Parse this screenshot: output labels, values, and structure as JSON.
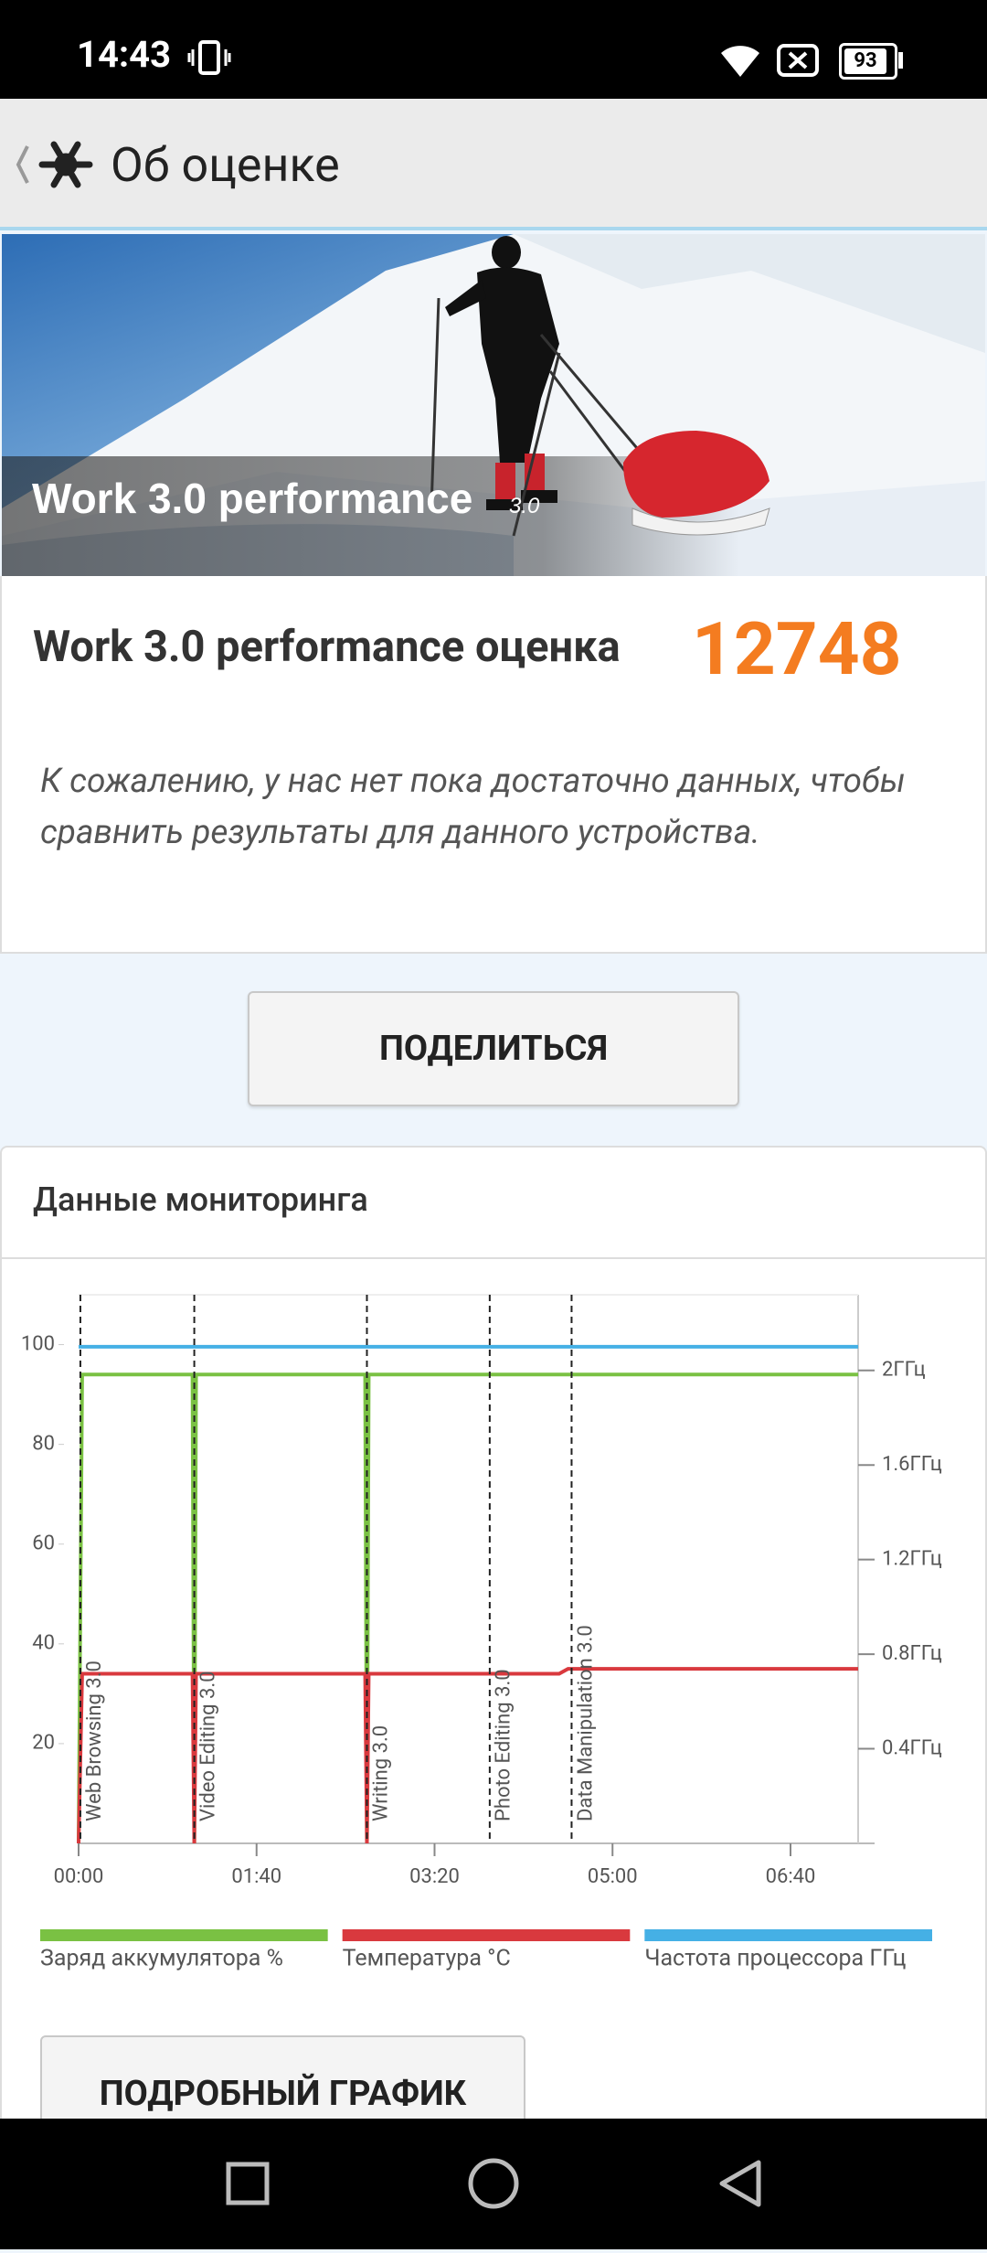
{
  "status_bar": {
    "time": "14:43",
    "battery": "93"
  },
  "header": {
    "title": "Об оценке"
  },
  "banner": {
    "title": "Work 3.0 performance",
    "version": "3.0"
  },
  "score": {
    "label": "Work 3.0 performance оценка",
    "value": 12748
  },
  "message": "К сожалению, у нас нет пока достаточно данных, чтобы сравнить результаты для данного устройства.",
  "share_button": "ПОДЕЛИТЬСЯ",
  "monitoring": {
    "title": "Данные мониторинга",
    "chart_data": {
      "type": "line",
      "x": [
        0,
        2,
        64,
        65,
        66,
        161,
        162,
        163,
        270,
        275,
        438
      ],
      "xlim": [
        0,
        438
      ],
      "xticks": [
        {
          "value": 0,
          "label": "00:00"
        },
        {
          "value": 100,
          "label": "01:40"
        },
        {
          "value": 200,
          "label": "03:20"
        },
        {
          "value": 300,
          "label": "05:00"
        },
        {
          "value": 400,
          "label": "06:40"
        }
      ],
      "ylim": [
        0,
        110
      ],
      "yticks": [
        20,
        40,
        60,
        80,
        100
      ],
      "y2lim": [
        0,
        2.32
      ],
      "y2ticks": [
        {
          "value": 0.4,
          "label": "0.4ГГц"
        },
        {
          "value": 0.8,
          "label": "0.8ГГц"
        },
        {
          "value": 1.2,
          "label": "1.2ГГц"
        },
        {
          "value": 1.6,
          "label": "1.6ГГц"
        },
        {
          "value": 2,
          "label": "2ГГц"
        }
      ],
      "series": [
        {
          "name": "Заряд аккумулятора %",
          "color": "#7ac143",
          "values": [
            0,
            94,
            94,
            0,
            94,
            94,
            0,
            94,
            94,
            94,
            94
          ]
        },
        {
          "name": "Температура °C",
          "color": "#d9393e",
          "values": [
            0,
            34,
            34,
            0,
            34,
            34,
            0,
            34,
            34,
            35,
            35
          ]
        },
        {
          "name": "Частота процессора ГГц",
          "color": "#45b0e5",
          "axis": "y2",
          "values": [
            2.1,
            2.1,
            2.1,
            2.1,
            2.1,
            2.1,
            2.1,
            2.1,
            2.1,
            2.1,
            2.1
          ]
        }
      ],
      "markers": [
        {
          "x": 1,
          "label": "Web Browsing 3.0"
        },
        {
          "x": 65,
          "label": "Video Editing 3.0"
        },
        {
          "x": 162,
          "label": "Writing 3.0"
        },
        {
          "x": 231,
          "label": "Photo Editing 3.0"
        },
        {
          "x": 277,
          "label": "Data Manipulation 3.0"
        }
      ]
    }
  },
  "detail_button": "ПОДРОБНЫЙ ГРАФИК"
}
